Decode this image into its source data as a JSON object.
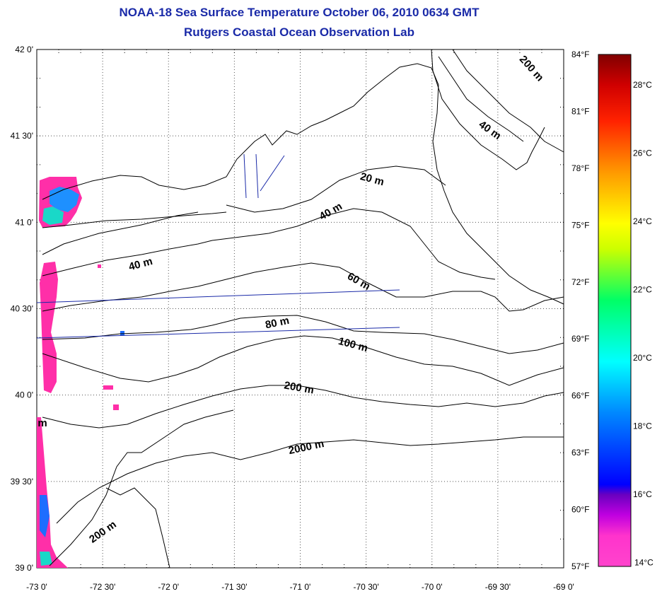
{
  "title": "NOAA-18 Sea Surface Temperature October 06, 2010 0634 GMT",
  "subtitle": "Rutgers Coastal Ocean Observation Lab",
  "map": {
    "lon_range": [
      -73.0,
      -69.0
    ],
    "lat_range": [
      39.0,
      42.0
    ],
    "grid": "dotted",
    "x_tick_labels": [
      "-73 0'",
      "-72 30'",
      "-72 0'",
      "-71 30'",
      "-71 0'",
      "-70 30'",
      "-70 0'",
      "-69 30'",
      "-69 0'"
    ],
    "y_tick_labels": [
      "42 0'",
      "41 30'",
      "41 0'",
      "40 30'",
      "40 0'",
      "39 30'",
      "39 0'"
    ],
    "contour_labels": [
      "200 m",
      "40 m",
      "20 m",
      "40 m",
      "40 m",
      "60 m",
      "80 m",
      "100 m",
      "200 m",
      "2000 m",
      "200 m",
      "m"
    ]
  },
  "colorbar": {
    "fahrenheit_labels": [
      "84°F",
      "81°F",
      "78°F",
      "75°F",
      "72°F",
      "69°F",
      "66°F",
      "63°F",
      "60°F",
      "57°F"
    ],
    "celsius_labels": [
      "28°C",
      "26°C",
      "24°C",
      "22°C",
      "20°C",
      "18°C",
      "16°C",
      "14°C"
    ],
    "colors": {
      "top": "#800000",
      "red": "#ff0000",
      "orange": "#ff8c00",
      "yellow": "#ffff00",
      "green": "#00ff66",
      "cyan": "#00ffff",
      "blue": "#0000ff",
      "purple": "#8000c0",
      "pink": "#ff33cc",
      "bottom": "#ff44bb"
    }
  },
  "colors": {
    "title": "#1a2aa8",
    "coast": "#000000",
    "track": "#1a2aa8",
    "sst_patch": "#ff2fa8"
  }
}
